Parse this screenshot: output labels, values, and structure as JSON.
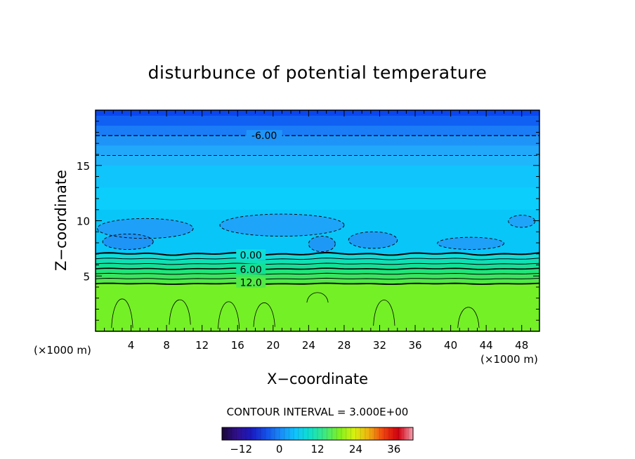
{
  "chart_data": {
    "type": "heatmap",
    "title": "disturbunce of potential temperature",
    "xlabel": "X−coordinate",
    "ylabel": "Z−coordinate",
    "x_unit_left": "(×1000 m)",
    "x_unit_right": "(×1000 m)",
    "xlim": [
      0,
      50
    ],
    "ylim": [
      0,
      20
    ],
    "x_ticks": [
      4,
      8,
      12,
      16,
      20,
      24,
      28,
      32,
      36,
      40,
      44,
      48
    ],
    "y_ticks": [
      5,
      10,
      15
    ],
    "contour_interval_text": "CONTOUR INTERVAL = 3.000E+00",
    "contour_labels": [
      {
        "text": "-6.00",
        "x": 19,
        "z": 17.7
      },
      {
        "text": "0.00",
        "x": 17.5,
        "z": 6.9
      },
      {
        "text": "6.00",
        "x": 17.5,
        "z": 5.6
      },
      {
        "text": "12.0",
        "x": 17.5,
        "z": 4.4
      }
    ],
    "colorbar": {
      "range": [
        -18,
        42
      ],
      "tick_values": [
        -12,
        0,
        12,
        24,
        36
      ],
      "tick_labels": [
        "−12",
        "0",
        "12",
        "24",
        "36"
      ]
    },
    "bands": [
      {
        "z0": 19.5,
        "z1": 20.0,
        "color": "#0a46f0"
      },
      {
        "z0": 18.6,
        "z1": 19.5,
        "color": "#1060f4"
      },
      {
        "z0": 17.7,
        "z1": 18.6,
        "color": "#1a7cf6"
      },
      {
        "z0": 16.8,
        "z1": 17.7,
        "color": "#1e94f8"
      },
      {
        "z0": 15.9,
        "z1": 16.8,
        "color": "#22a8fa"
      },
      {
        "z0": 15.0,
        "z1": 15.9,
        "color": "#1fb6fb"
      },
      {
        "z0": 13.0,
        "z1": 15.0,
        "color": "#10c4fc"
      },
      {
        "z0": 11.0,
        "z1": 13.0,
        "color": "#0ccefd"
      },
      {
        "z0": 7.0,
        "z1": 11.0,
        "color": "#08c6f8"
      },
      {
        "z0": 6.55,
        "z1": 7.0,
        "color": "#10ddd8"
      },
      {
        "z0": 6.1,
        "z1": 6.55,
        "color": "#10e0b4"
      },
      {
        "z0": 5.65,
        "z1": 6.1,
        "color": "#12e296"
      },
      {
        "z0": 5.2,
        "z1": 5.65,
        "color": "#22e47a"
      },
      {
        "z0": 4.75,
        "z1": 5.2,
        "color": "#38e65e"
      },
      {
        "z0": 4.3,
        "z1": 4.75,
        "color": "#52e846"
      },
      {
        "z0": 0.0,
        "z1": 4.3,
        "color": "#74f026"
      }
    ],
    "pockets": [
      {
        "x0": 0.2,
        "x1": 11,
        "z0": 8.4,
        "z1": 10.2,
        "color": "#1ea0f8"
      },
      {
        "x0": 0.8,
        "x1": 6.5,
        "z0": 7.4,
        "z1": 8.8,
        "color": "#1e94f6"
      },
      {
        "x0": 14,
        "x1": 28,
        "z0": 8.6,
        "z1": 10.6,
        "color": "#1ea4f8"
      },
      {
        "x0": 24,
        "x1": 27,
        "z0": 7.2,
        "z1": 8.6,
        "color": "#1e98f6"
      },
      {
        "x0": 28.5,
        "x1": 34,
        "z0": 7.5,
        "z1": 9.0,
        "color": "#1e9af6"
      },
      {
        "x0": 38.5,
        "x1": 46,
        "z0": 7.4,
        "z1": 8.5,
        "color": "#1ea0f8"
      },
      {
        "x0": 46.5,
        "x1": 49.5,
        "z0": 9.4,
        "z1": 10.5,
        "color": "#1ea4f8"
      }
    ],
    "colorbar_stops": [
      "#1a0636",
      "#30108c",
      "#1a1ac0",
      "#1450e8",
      "#1a8cf6",
      "#10c4fc",
      "#10e0c8",
      "#3ee880",
      "#80f020",
      "#d8f010",
      "#f0b010",
      "#f04010",
      "#d00010",
      "#f4a0b0"
    ]
  }
}
